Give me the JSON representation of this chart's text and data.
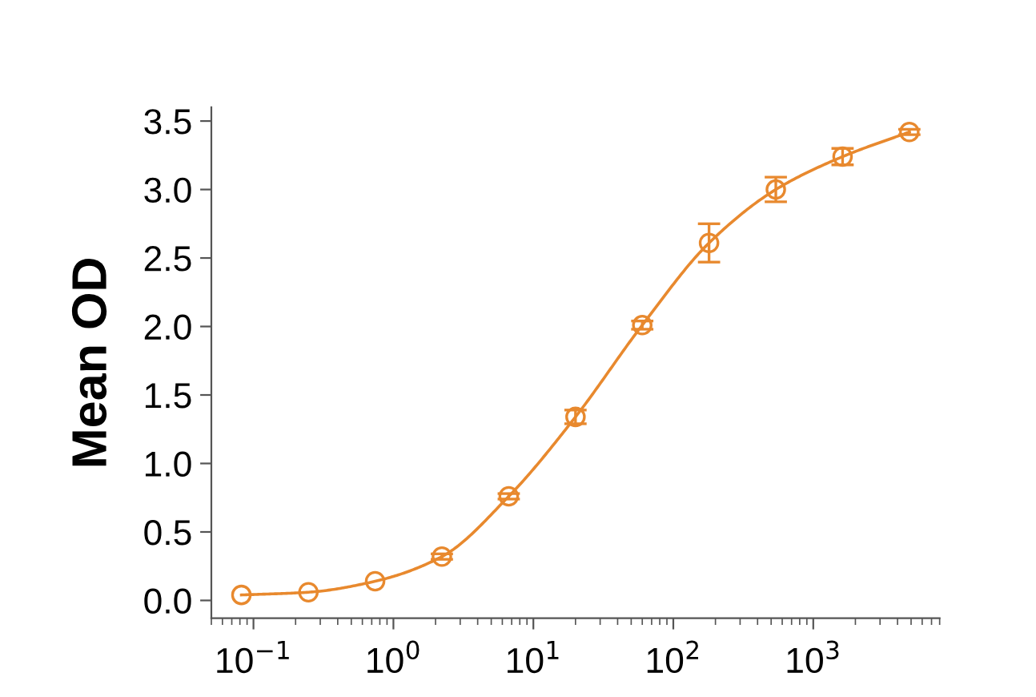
{
  "chart_data": {
    "type": "scatter",
    "ylabel": "Mean OD",
    "log": "x",
    "marker": "circle",
    "grid": false,
    "xlim": [
      0.05,
      8000
    ],
    "xticks": [
      {
        "value": 0.1,
        "label": "10$^{−1}$"
      },
      {
        "value": 1,
        "label": "10$^{0}$"
      },
      {
        "value": 10,
        "label": "10$^{1}$"
      },
      {
        "value": 100,
        "label": "10$^{2}$"
      },
      {
        "value": 1000,
        "label": "10$^{3}$"
      }
    ],
    "ylim": [
      -0.13,
      3.6
    ],
    "yticks": [
      {
        "value": 0,
        "label": "0.0"
      },
      0.5,
      {
        "value": 1,
        "label": "1.0"
      },
      1.5,
      {
        "value": 2,
        "label": "2.0"
      },
      2.5,
      {
        "value": 3,
        "label": "3.0"
      },
      3.5
    ],
    "series": [
      {
        "color": "#e8892e",
        "x": [
          0.082,
          0.247,
          0.74,
          2.22,
          6.67,
          20,
          60,
          180,
          540,
          1620,
          4860
        ],
        "values": [
          0.04,
          0.06,
          0.14,
          0.32,
          0.76,
          1.34,
          2.01,
          2.61,
          3.0,
          3.24,
          3.42
        ],
        "errors": [
          null,
          null,
          null,
          0.02,
          0.02,
          0.05,
          0.03,
          0.14,
          0.09,
          0.06,
          0.02
        ]
      },
      {
        "type": "line",
        "color": "#e8892e",
        "marker": "none",
        "line_style": "solid",
        "x": [
          0.082,
          0.247,
          0.74,
          2.22,
          6.67,
          20,
          60,
          180,
          540,
          1620,
          4860
        ],
        "values": [
          0.04,
          0.06,
          0.14,
          0.32,
          0.76,
          1.34,
          2.01,
          2.61,
          3.0,
          3.24,
          3.42
        ]
      }
    ]
  }
}
